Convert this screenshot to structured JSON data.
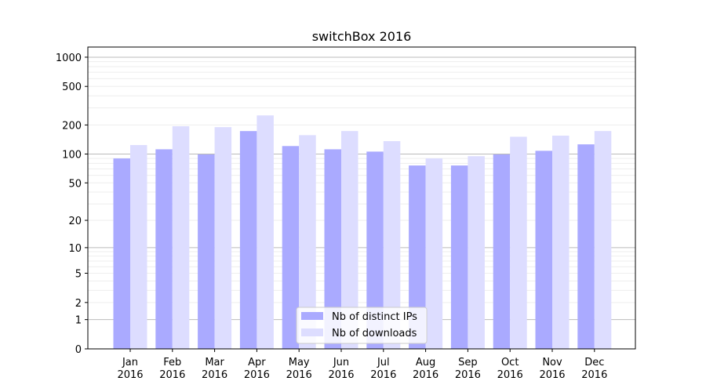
{
  "chart_data": {
    "type": "bar",
    "title": "switchBox 2016",
    "xlabel": "",
    "ylabel": "",
    "yscale": "symlog (log10(1+y))",
    "ylim": [
      0,
      1200
    ],
    "yticks": [
      0,
      1,
      2,
      5,
      10,
      20,
      50,
      100,
      200,
      500,
      1000
    ],
    "grid": true,
    "legend_position": "bottom-center",
    "categories": [
      "Jan\n2016",
      "Feb\n2016",
      "Mar\n2016",
      "Apr\n2016",
      "May\n2016",
      "Jun\n2016",
      "Jul\n2016",
      "Aug\n2016",
      "Sep\n2016",
      "Oct\n2016",
      "Nov\n2016",
      "Dec\n2016"
    ],
    "series": [
      {
        "name": "Nb of distinct IPs",
        "color": "#aaaaff",
        "values": [
          90,
          112,
          99,
          173,
          121,
          112,
          106,
          76,
          76,
          99,
          108,
          126
        ]
      },
      {
        "name": "Nb of downloads",
        "color": "#ddddff",
        "values": [
          124,
          194,
          190,
          251,
          157,
          173,
          136,
          90,
          95,
          151,
          155,
          173
        ]
      }
    ]
  }
}
